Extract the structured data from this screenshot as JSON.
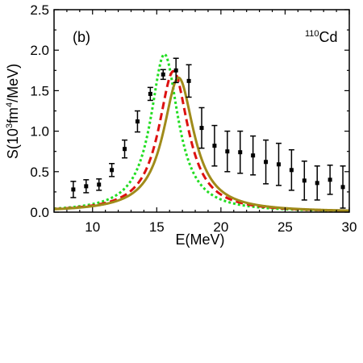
{
  "chart_data": {
    "type": "line",
    "panel_label": "(b)",
    "nucleus": {
      "mass_number": "110",
      "symbol": "Cd"
    },
    "xlabel": "E(MeV)",
    "ylabel": {
      "pre": "S(10",
      "sup1": "3",
      "mid": "fm",
      "sup2": "4",
      "post": "/MeV)"
    },
    "xlim": [
      7,
      30
    ],
    "ylim": [
      0,
      2.5
    ],
    "x_ticks": [
      10,
      15,
      20,
      25,
      30
    ],
    "y_ticks": [
      "0.0",
      "0.5",
      "1.0",
      "1.5",
      "2.0",
      "2.5"
    ],
    "grid": false,
    "experimental": {
      "color": "#000000",
      "points": [
        {
          "x": 8.5,
          "y": 0.28,
          "err": 0.1
        },
        {
          "x": 9.5,
          "y": 0.32,
          "err": 0.08
        },
        {
          "x": 10.5,
          "y": 0.34,
          "err": 0.07
        },
        {
          "x": 11.5,
          "y": 0.52,
          "err": 0.08
        },
        {
          "x": 12.5,
          "y": 0.78,
          "err": 0.11
        },
        {
          "x": 13.5,
          "y": 1.12,
          "err": 0.13
        },
        {
          "x": 14.5,
          "y": 1.46,
          "err": 0.08
        },
        {
          "x": 15.5,
          "y": 1.7,
          "err": 0.06
        },
        {
          "x": 16.5,
          "y": 1.75,
          "err": 0.15
        },
        {
          "x": 17.5,
          "y": 1.62,
          "err": 0.2
        },
        {
          "x": 18.5,
          "y": 1.04,
          "err": 0.25
        },
        {
          "x": 19.5,
          "y": 0.82,
          "err": 0.25
        },
        {
          "x": 20.5,
          "y": 0.75,
          "err": 0.25
        },
        {
          "x": 21.5,
          "y": 0.74,
          "err": 0.26
        },
        {
          "x": 22.5,
          "y": 0.7,
          "err": 0.24
        },
        {
          "x": 23.5,
          "y": 0.62,
          "err": 0.27
        },
        {
          "x": 24.5,
          "y": 0.59,
          "err": 0.26
        },
        {
          "x": 25.5,
          "y": 0.52,
          "err": 0.25
        },
        {
          "x": 26.5,
          "y": 0.39,
          "err": 0.24
        },
        {
          "x": 27.5,
          "y": 0.36,
          "err": 0.21
        },
        {
          "x": 28.5,
          "y": 0.4,
          "err": 0.18
        },
        {
          "x": 29.5,
          "y": 0.31,
          "err": 0.26
        }
      ]
    },
    "series": [
      {
        "style": "dotted",
        "color": "#22dd22",
        "peak": 15.6,
        "height": 1.95,
        "width": 2.6
      },
      {
        "style": "dashed",
        "color": "#dd1111",
        "peak": 16.3,
        "height": 1.74,
        "width": 2.8
      },
      {
        "style": "solid",
        "color": "#a08b1a",
        "peak": 16.7,
        "height": 1.66,
        "width": 2.9
      }
    ]
  }
}
